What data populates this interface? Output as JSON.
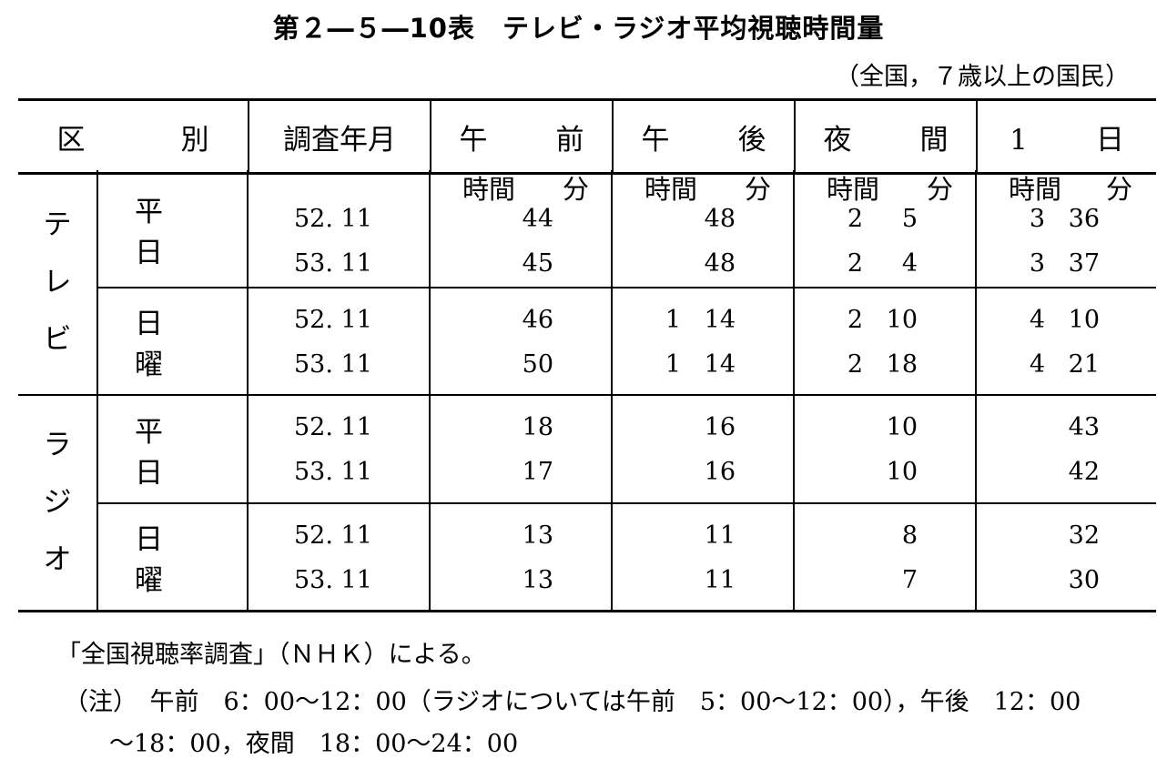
{
  "title": "第２―５―10表　テレビ・ラジオ平均視聴時間量",
  "subtitle": "（全国，７歳以上の国民）",
  "table": {
    "headers": {
      "category_a": "区",
      "category_b": "別",
      "survey": "調査年月",
      "morning_a": "午",
      "morning_b": "前",
      "afternoon_a": "午",
      "afternoon_b": "後",
      "night_a": "夜",
      "night_b": "間",
      "day_a": "1",
      "day_b": "日"
    },
    "unit_hour": "時間",
    "unit_min": "分",
    "media": [
      {
        "chars": [
          "テ",
          "レ",
          "ビ"
        ],
        "groups": [
          {
            "label": "平日",
            "rows": [
              {
                "ym": "52. 11",
                "am": [
                  "",
                  "44"
                ],
                "pm": [
                  "",
                  "48"
                ],
                "night": [
                  "2",
                  "5"
                ],
                "day": [
                  "3",
                  "36"
                ]
              },
              {
                "ym": "53. 11",
                "am": [
                  "",
                  "45"
                ],
                "pm": [
                  "",
                  "48"
                ],
                "night": [
                  "2",
                  "4"
                ],
                "day": [
                  "3",
                  "37"
                ]
              }
            ]
          },
          {
            "label": "日曜",
            "rows": [
              {
                "ym": "52. 11",
                "am": [
                  "",
                  "46"
                ],
                "pm": [
                  "1",
                  "14"
                ],
                "night": [
                  "2",
                  "10"
                ],
                "day": [
                  "4",
                  "10"
                ]
              },
              {
                "ym": "53. 11",
                "am": [
                  "",
                  "50"
                ],
                "pm": [
                  "1",
                  "14"
                ],
                "night": [
                  "2",
                  "18"
                ],
                "day": [
                  "4",
                  "21"
                ]
              }
            ]
          }
        ]
      },
      {
        "chars": [
          "ラ",
          "ジ",
          "オ"
        ],
        "groups": [
          {
            "label": "平日",
            "rows": [
              {
                "ym": "52. 11",
                "am": [
                  "",
                  "18"
                ],
                "pm": [
                  "",
                  "16"
                ],
                "night": [
                  "",
                  "10"
                ],
                "day": [
                  "",
                  "43"
                ]
              },
              {
                "ym": "53. 11",
                "am": [
                  "",
                  "17"
                ],
                "pm": [
                  "",
                  "16"
                ],
                "night": [
                  "",
                  "10"
                ],
                "day": [
                  "",
                  "42"
                ]
              }
            ]
          },
          {
            "label": "日曜",
            "rows": [
              {
                "ym": "52. 11",
                "am": [
                  "",
                  "13"
                ],
                "pm": [
                  "",
                  "11"
                ],
                "night": [
                  "",
                  "8"
                ],
                "day": [
                  "",
                  "32"
                ]
              },
              {
                "ym": "53. 11",
                "am": [
                  "",
                  "13"
                ],
                "pm": [
                  "",
                  "11"
                ],
                "night": [
                  "",
                  "7"
                ],
                "day": [
                  "",
                  "30"
                ]
              }
            ]
          }
        ]
      }
    ]
  },
  "notes": {
    "source": "「全国視聴率調査」（ＮＨＫ）による。",
    "note_line1": "（注）　午前　6：00～12：00（ラジオについては午前　5：00～12：00），午後　12：00",
    "note_line2": "～18：00，夜間　18：00～24：00"
  }
}
